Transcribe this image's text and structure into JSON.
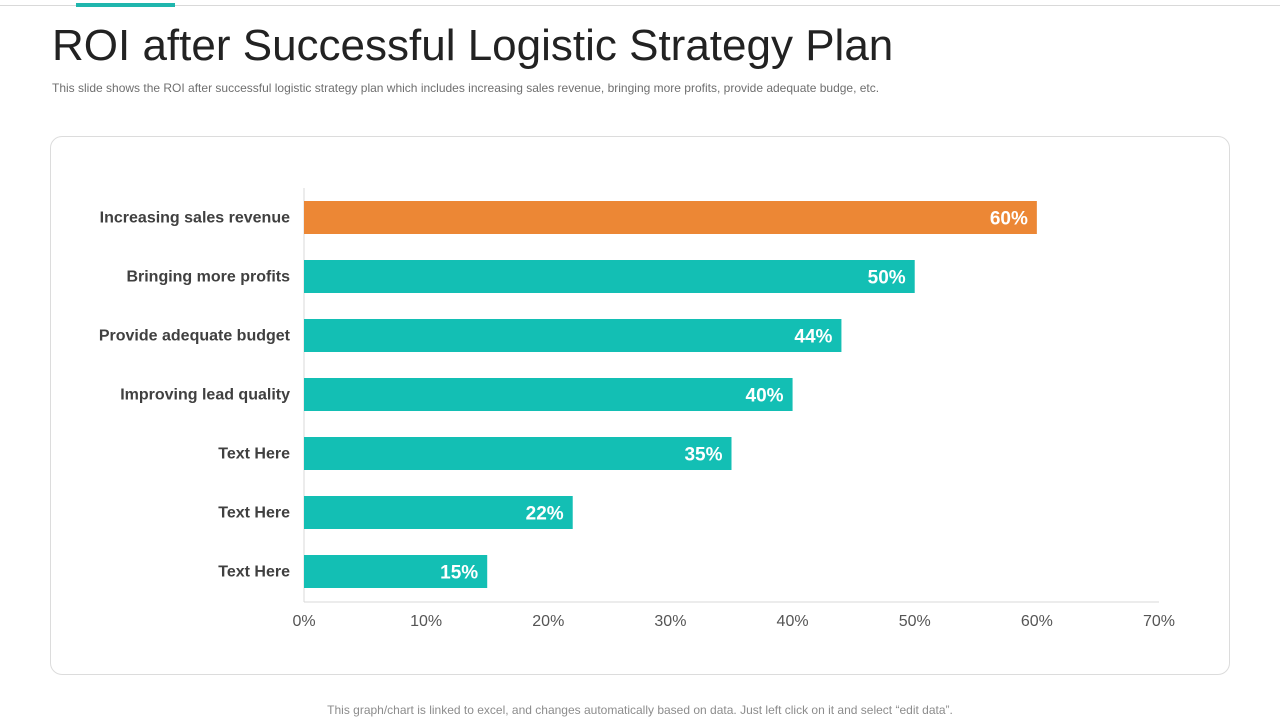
{
  "slide": {
    "title": "ROI after Successful Logistic Strategy Plan",
    "subtitle": "This slide shows the ROI after successful logistic strategy plan which includes increasing sales revenue,  bringing  more profits, provide  adequate budge, etc.",
    "footer": "This graph/chart is linked to excel, and changes automatically based on data. Just left click on it and select “edit data”."
  },
  "colors": {
    "highlight": "#ec8735",
    "bar": "#13bfb4",
    "accent_line": "#1fb6ad",
    "label_text": "#404040",
    "value_text": "#ffffff"
  },
  "chart_data": {
    "type": "bar",
    "orientation": "horizontal",
    "categories": [
      "Increasing sales revenue",
      "Bringing more profits",
      "Provide adequate budget",
      "Improving lead quality",
      "Text Here",
      "Text Here",
      "Text Here"
    ],
    "values": [
      60,
      50,
      44,
      40,
      35,
      22,
      15
    ],
    "value_labels": [
      "60%",
      "50%",
      "44%",
      "40%",
      "35%",
      "22%",
      "15%"
    ],
    "highlight_index": 0,
    "xlim": [
      0,
      70
    ],
    "xticks": [
      0,
      10,
      20,
      30,
      40,
      50,
      60,
      70
    ],
    "xtick_labels": [
      "0%",
      "10%",
      "20%",
      "30%",
      "40%",
      "50%",
      "60%",
      "70%"
    ],
    "title": "",
    "xlabel": "",
    "ylabel": "",
    "grid": false,
    "legend": "none"
  }
}
